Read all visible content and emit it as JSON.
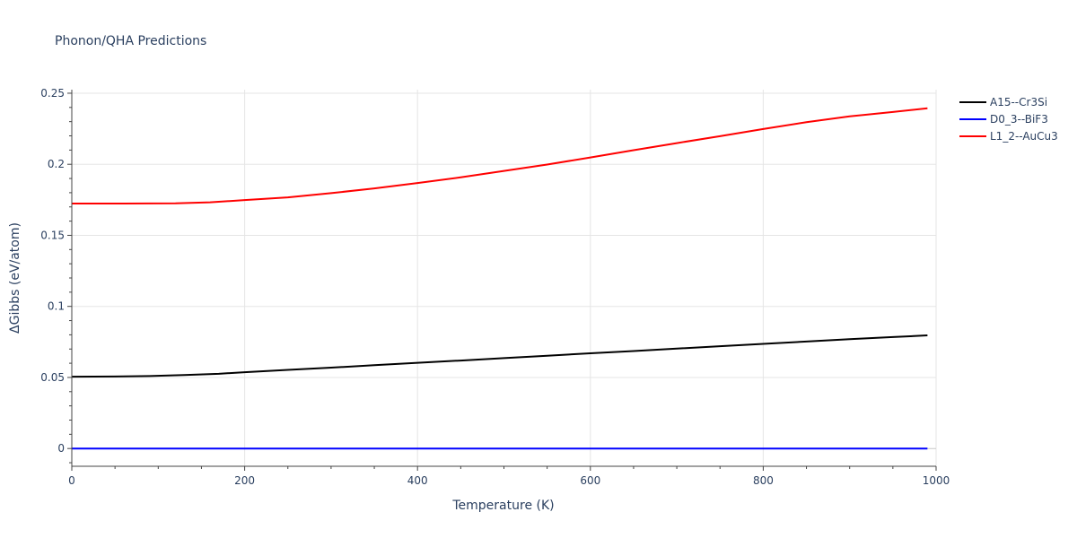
{
  "chart_data": {
    "type": "line",
    "title": "Phonon/QHA Predictions",
    "xlabel": "Temperature (K)",
    "ylabel": "ΔGibbs (eV/atom)",
    "xlim": [
      0,
      1000
    ],
    "ylim": [
      -0.0125,
      0.2525
    ],
    "xticks": [
      0,
      200,
      400,
      600,
      800,
      1000
    ],
    "xtick_labels": [
      "0",
      "200",
      "400",
      "600",
      "800",
      "1000"
    ],
    "yticks": [
      0,
      0.05,
      0.1,
      0.15,
      0.2,
      0.25
    ],
    "ytick_labels": [
      "0",
      "0.05",
      "0.1",
      "0.15",
      "0.2",
      "0.25"
    ],
    "grid": true,
    "legend_position": "top-right",
    "series": [
      {
        "name": "A15--Cr3Si",
        "color": "#000000",
        "x": [
          0,
          50,
          90,
          130,
          170,
          200,
          250,
          300,
          350,
          400,
          450,
          500,
          550,
          600,
          650,
          700,
          750,
          800,
          850,
          900,
          950,
          990
        ],
        "y": [
          0.0505,
          0.0507,
          0.051,
          0.0517,
          0.0526,
          0.0537,
          0.0553,
          0.0569,
          0.0586,
          0.0603,
          0.0619,
          0.0636,
          0.0653,
          0.067,
          0.0686,
          0.0703,
          0.072,
          0.0736,
          0.0753,
          0.0769,
          0.0784,
          0.0796
        ]
      },
      {
        "name": "D0_3--BiF3",
        "color": "#0000ff",
        "x": [
          0,
          990
        ],
        "y": [
          0,
          0
        ]
      },
      {
        "name": "L1_2--AuCu3",
        "color": "#ff0000",
        "x": [
          0,
          60,
          120,
          160,
          200,
          250,
          300,
          350,
          400,
          450,
          500,
          550,
          600,
          650,
          700,
          750,
          800,
          850,
          900,
          950,
          990
        ],
        "y": [
          0.1724,
          0.1724,
          0.1725,
          0.1732,
          0.1748,
          0.1767,
          0.1797,
          0.183,
          0.1868,
          0.1908,
          0.1953,
          0.1998,
          0.2048,
          0.2099,
          0.2149,
          0.2198,
          0.2248,
          0.2296,
          0.2337,
          0.2368,
          0.2394
        ]
      }
    ]
  }
}
